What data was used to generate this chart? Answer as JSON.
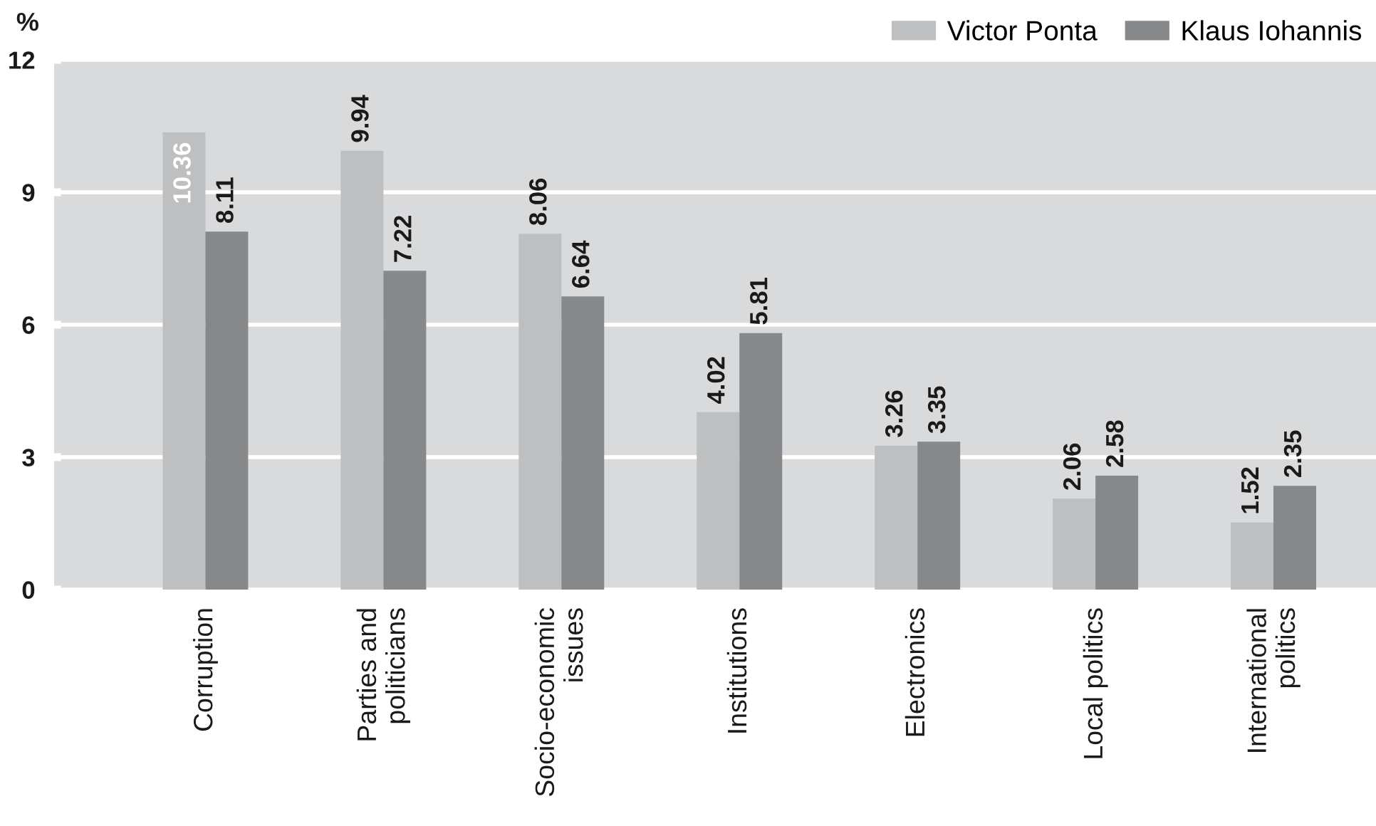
{
  "chart_data": {
    "type": "bar",
    "ylabel": "%",
    "categories": [
      "Corruption",
      "Parties and\npoliticians",
      "Socio-economic\nissues",
      "Institutions",
      "Electronics",
      "Local politics",
      "International\npolitics"
    ],
    "series": [
      {
        "name": "Victor Ponta",
        "color": "#bebfc1",
        "values": [
          10.36,
          9.94,
          8.06,
          4.02,
          3.26,
          2.06,
          1.52
        ]
      },
      {
        "name": "Klaus Iohannis",
        "color": "#87888a",
        "values": [
          8.11,
          7.22,
          6.64,
          5.81,
          3.35,
          2.58,
          2.35
        ]
      }
    ],
    "ylim": [
      0,
      12
    ],
    "yticks": [
      0,
      3,
      6,
      9,
      12
    ],
    "grid": "y",
    "legend": "top right",
    "data_labels": true
  }
}
